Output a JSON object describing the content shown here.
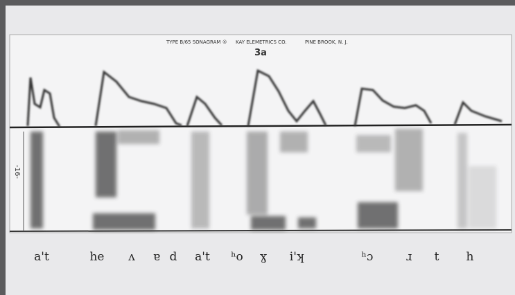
{
  "header": {
    "left": "TYPE B/65 SONAGRAM ®",
    "middle": "KAY ELEMETRICS CO.",
    "right": "PINE BROOK, N. J."
  },
  "figure_label": "3a",
  "side_label": "-16-",
  "transcription": [
    "a't",
    "he",
    "ʌ",
    "ɐ",
    "d",
    "a't",
    "ʰo",
    "ɣ",
    "i'ʞ",
    "ʰɔ",
    "ɹ",
    "t",
    "h"
  ]
}
